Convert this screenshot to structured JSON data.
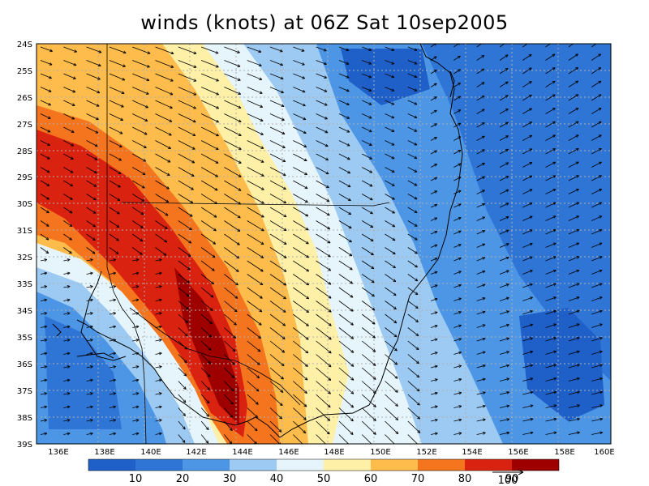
{
  "title": "winds (knots) at 06Z Sat 10sep2005",
  "map": {
    "lat_labels": [
      "24S",
      "25S",
      "26S",
      "27S",
      "28S",
      "29S",
      "30S",
      "31S",
      "32S",
      "33S",
      "34S",
      "35S",
      "36S",
      "37S",
      "38S",
      "39S"
    ],
    "lon_labels": [
      "136E",
      "138E",
      "140E",
      "142E",
      "144E",
      "146E",
      "148E",
      "150E",
      "152E",
      "154E",
      "156E",
      "158E",
      "160E"
    ]
  },
  "colorbar": {
    "labels": [
      "10",
      "20",
      "30",
      "40",
      "50",
      "60",
      "70",
      "80",
      "90"
    ],
    "colors": [
      "#1e5fc8",
      "#2e75d6",
      "#4d96e6",
      "#9ccaf2",
      "#e6f5fb",
      "#fff0a8",
      "#fdbc4b",
      "#f5751e",
      "#d9220f",
      "#9e0000"
    ],
    "reference_vector_label": "100"
  },
  "colors": {
    "grid": "#b0b0b0",
    "coast": "#000000",
    "arrow": "#000000"
  }
}
